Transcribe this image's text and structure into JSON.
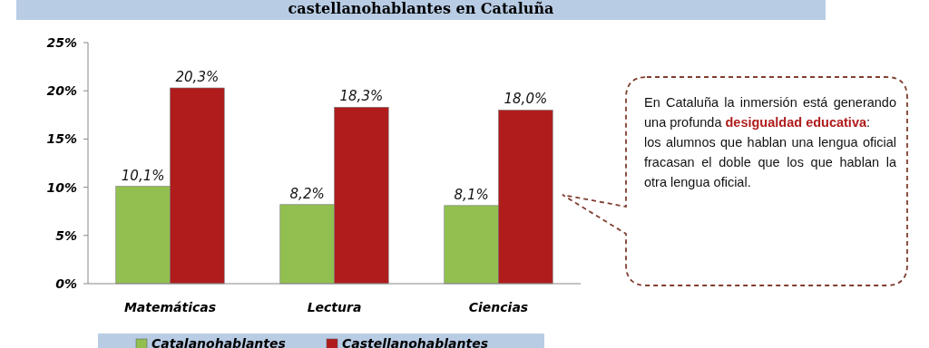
{
  "chart_data": {
    "type": "bar",
    "title": "castellanohablantes en Cataluña",
    "categories": [
      "Matemáticas",
      "Lectura",
      "Ciencias"
    ],
    "series": [
      {
        "name": "Catalanohablantes",
        "color": "#92c050",
        "values": [
          10.1,
          8.2,
          8.1
        ],
        "value_labels": [
          "10,1%",
          "8,2%",
          "8,1%"
        ]
      },
      {
        "name": "Castellanohablantes",
        "color": "#b01c1c",
        "values": [
          20.3,
          18.3,
          18.0
        ],
        "value_labels": [
          "20,3%",
          "18,3%",
          "18,0%"
        ]
      }
    ],
    "ylim": [
      0,
      25
    ],
    "yticks": [
      {
        "value": 0,
        "label": "0%"
      },
      {
        "value": 5,
        "label": "5%"
      },
      {
        "value": 10,
        "label": "10%"
      },
      {
        "value": 15,
        "label": "15%"
      },
      {
        "value": 20,
        "label": "20%"
      },
      {
        "value": 25,
        "label": "25%"
      }
    ],
    "grid": false,
    "legend": "bottom",
    "annotations": [
      "En Cataluña la inmersión está generando una profunda ",
      "desigualdad educativa",
      ":",
      "los alumnos que hablan una lengua oficial fracasan el doble que los que hablan la otra lengua oficial."
    ]
  }
}
